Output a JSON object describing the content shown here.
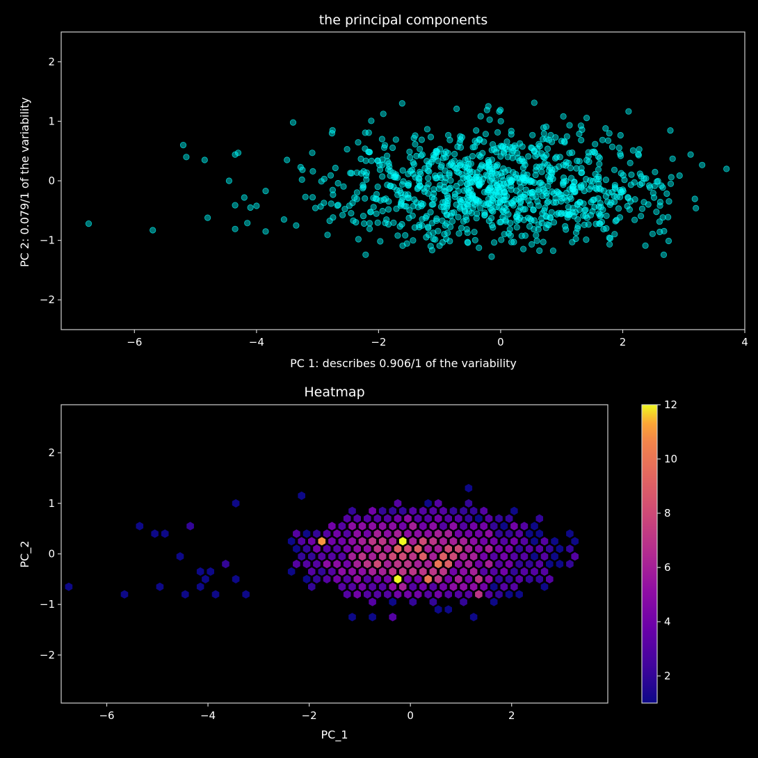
{
  "chart_data": [
    {
      "type": "scatter",
      "title": "the principal components",
      "xlabel": "PC 1: describes 0.906/1 of the variability",
      "ylabel": "PC 2: 0.079/1 of the variability",
      "xlim": [
        -7.2,
        4.0
      ],
      "ylim": [
        -2.5,
        2.5
      ],
      "xticks": [
        -6,
        -4,
        -2,
        0,
        2,
        4
      ],
      "yticks": [
        -2,
        -1,
        0,
        1,
        2
      ],
      "marker_color": "#00ffff",
      "marker_opacity": 0.45,
      "n_points": 1000,
      "distribution": {
        "x_mean": 0.0,
        "x_std": 1.5,
        "x_min": -6.8,
        "x_max": 3.75,
        "y_mean": -0.1,
        "y_std": 0.5,
        "y_min": -1.3,
        "y_max": 1.35
      },
      "outliers": [
        {
          "x": -6.75,
          "y": -0.72
        },
        {
          "x": -5.7,
          "y": -0.83
        },
        {
          "x": -5.2,
          "y": 0.6
        },
        {
          "x": -5.15,
          "y": 0.4
        },
        {
          "x": -4.85,
          "y": 0.35
        },
        {
          "x": -4.8,
          "y": -0.62
        },
        {
          "x": -4.45,
          "y": 0.0
        },
        {
          "x": -4.35,
          "y": 0.44
        },
        {
          "x": -4.3,
          "y": 0.47
        },
        {
          "x": -4.35,
          "y": -0.41
        },
        {
          "x": -4.35,
          "y": -0.81
        },
        {
          "x": -4.2,
          "y": -0.28
        },
        {
          "x": -4.15,
          "y": -0.71
        },
        {
          "x": -4.1,
          "y": -0.45
        },
        {
          "x": -4.0,
          "y": -0.42
        },
        {
          "x": -3.85,
          "y": -0.17
        },
        {
          "x": -3.85,
          "y": -0.85
        },
        {
          "x": -3.55,
          "y": -0.65
        },
        {
          "x": -3.5,
          "y": 0.35
        },
        {
          "x": -3.4,
          "y": 0.98
        },
        {
          "x": -3.35,
          "y": -0.75
        },
        {
          "x": 3.7,
          "y": 0.2
        }
      ]
    },
    {
      "type": "heatmap",
      "title": "Heatmap",
      "xlabel": "PC_1",
      "ylabel": "PC_2",
      "xlim": [
        -6.9,
        3.9
      ],
      "ylim": [
        -2.95,
        2.95
      ],
      "xticks": [
        -6,
        -4,
        -2,
        0,
        2
      ],
      "yticks": [
        -2,
        -1,
        0,
        1,
        2
      ],
      "colormap": "plasma",
      "colorbar": {
        "min": 1,
        "max": 12,
        "ticks": [
          2,
          4,
          6,
          8,
          10,
          12
        ]
      },
      "hex_dx": 0.2,
      "hex_dy": 0.2,
      "bins": [
        {
          "x": -6.8,
          "y": -0.65,
          "c": 1
        },
        {
          "x": -5.6,
          "y": -0.8,
          "c": 1
        },
        {
          "x": -5.3,
          "y": 0.5,
          "c": 1
        },
        {
          "x": -5.15,
          "y": 0.35,
          "c": 1
        },
        {
          "x": -4.95,
          "y": 0.35,
          "c": 1
        },
        {
          "x": -4.95,
          "y": -0.65,
          "c": 1
        },
        {
          "x": -4.45,
          "y": 0.5,
          "c": 2
        },
        {
          "x": -4.5,
          "y": -0.05,
          "c": 1
        },
        {
          "x": -4.45,
          "y": -0.8,
          "c": 1
        },
        {
          "x": -4.25,
          "y": -0.35,
          "c": 1
        },
        {
          "x": -4.25,
          "y": -0.65,
          "c": 1
        },
        {
          "x": -4.15,
          "y": -0.5,
          "c": 1
        },
        {
          "x": -4.05,
          "y": -0.35,
          "c": 1
        },
        {
          "x": -3.95,
          "y": -0.8,
          "c": 1
        },
        {
          "x": -3.7,
          "y": -0.15,
          "c": 2
        },
        {
          "x": -3.4,
          "y": 1.05,
          "c": 1
        },
        {
          "x": -3.4,
          "y": -0.5,
          "c": 1
        },
        {
          "x": -3.35,
          "y": -0.8,
          "c": 1
        },
        {
          "x": -2.15,
          "y": 1.2,
          "c": 1
        },
        {
          "x": -1.25,
          "y": -1.3,
          "c": 1
        },
        {
          "x": -0.85,
          "y": -1.3,
          "c": 1
        },
        {
          "x": -0.45,
          "y": -1.3,
          "c": 3
        },
        {
          "x": 0.55,
          "y": -1.15,
          "c": 1
        },
        {
          "x": 0.85,
          "y": -1.15,
          "c": 1
        },
        {
          "x": 1.2,
          "y": 1.35,
          "c": 1
        },
        {
          "x": 1.2,
          "y": -1.3,
          "c": 1
        },
        {
          "x": -1.85,
          "y": 0.2,
          "c": 11
        },
        {
          "x": -0.1,
          "y": 0.2,
          "c": 12
        },
        {
          "x": -0.2,
          "y": -0.5,
          "c": 12
        },
        {
          "x": 0.45,
          "y": -0.5,
          "c": 10
        },
        {
          "x": 0.5,
          "y": -0.15,
          "c": 10
        },
        {
          "x": 0.85,
          "y": -0.15,
          "c": 9
        },
        {
          "x": -0.05,
          "y": 0.05,
          "c": 8
        },
        {
          "x": 1.3,
          "y": -0.5,
          "c": 7
        },
        {
          "x": 1.3,
          "y": -0.8,
          "c": 7
        }
      ]
    }
  ]
}
